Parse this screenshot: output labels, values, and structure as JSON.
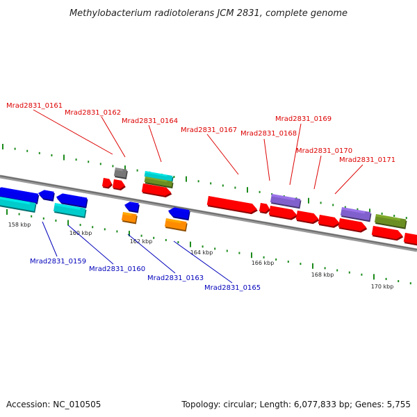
{
  "title": "Methylobacterium radiotolerans JCM 2831, complete genome",
  "footer": {
    "accession": "Accession: NC_010505",
    "topology": "Topology: circular; Length: 6,077,833 bp; Genes: 5,755"
  },
  "colors": {
    "forward_label": "#dd0000",
    "reverse_label": "#0000bb",
    "backbone": "#888888",
    "tick": "#1a8a1a"
  },
  "ticks": [
    "158 kbp",
    "160 kbp",
    "162 kbp",
    "164 kbp",
    "166 kbp",
    "168 kbp",
    "170 kbp"
  ],
  "genes_top": [
    "Mrad2831_0161",
    "Mrad2831_0162",
    "Mrad2831_0164",
    "Mrad2831_0167",
    "Mrad2831_0168",
    "Mrad2831_0169",
    "Mrad2831_0170",
    "Mrad2831_0171"
  ],
  "genes_bottom": [
    "Mrad2831_0159",
    "Mrad2831_0160",
    "Mrad2831_0163",
    "Mrad2831_0165"
  ]
}
